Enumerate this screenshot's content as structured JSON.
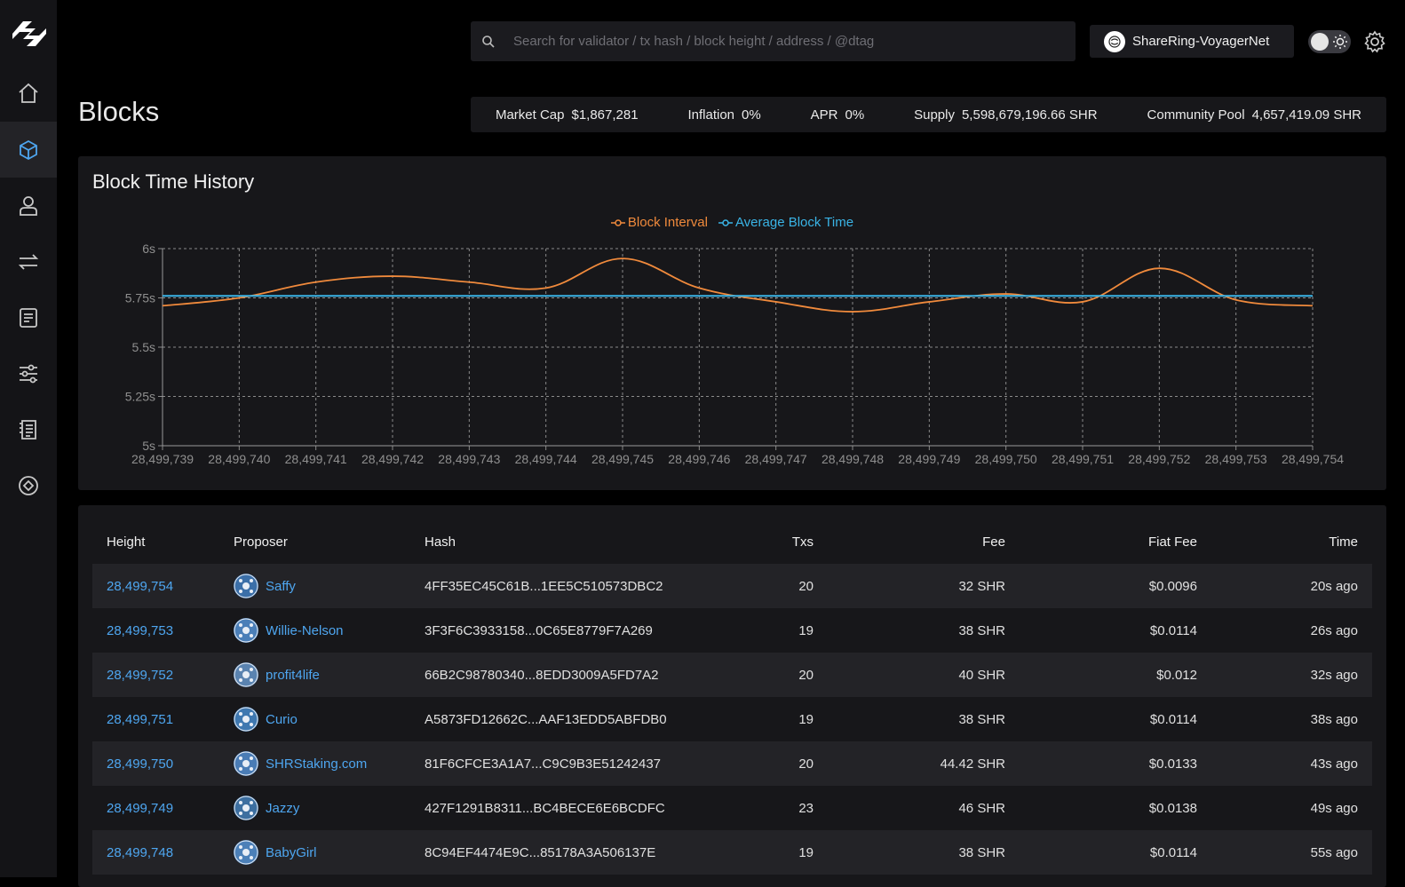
{
  "search": {
    "placeholder": "Search for validator / tx hash / block height / address / @dtag"
  },
  "network": {
    "name": "ShareRing-VoyagerNet"
  },
  "page": {
    "title": "Blocks"
  },
  "stats": [
    {
      "label": "Market Cap",
      "value": "$1,867,281"
    },
    {
      "label": "Inflation",
      "value": "0%"
    },
    {
      "label": "APR",
      "value": "0%"
    },
    {
      "label": "Supply",
      "value": "5,598,679,196.66 SHR"
    },
    {
      "label": "Community Pool",
      "value": "4,657,419.09 SHR"
    }
  ],
  "nav": [
    "home-icon",
    "blocks-icon",
    "validators-icon",
    "transactions-icon",
    "proposals-icon",
    "params-icon",
    "docs-icon",
    "other-icon"
  ],
  "colors": {
    "interval": "#f08a3c",
    "average": "#3ab4e6",
    "link": "#4ea6f0"
  },
  "chart_data": {
    "type": "line",
    "title": "Block Time History",
    "legend": [
      "Block Interval",
      "Average Block Time"
    ],
    "legend_position": "top-center",
    "categories": [
      "28,499,739",
      "28,499,740",
      "28,499,741",
      "28,499,742",
      "28,499,743",
      "28,499,744",
      "28,499,745",
      "28,499,746",
      "28,499,747",
      "28,499,748",
      "28,499,749",
      "28,499,750",
      "28,499,751",
      "28,499,752",
      "28,499,753",
      "28,499,754"
    ],
    "series": [
      {
        "name": "Block Interval",
        "values": [
          5.71,
          5.75,
          5.83,
          5.86,
          5.83,
          5.8,
          5.95,
          5.8,
          5.73,
          5.68,
          5.73,
          5.77,
          5.73,
          5.9,
          5.74,
          5.71
        ]
      },
      {
        "name": "Average Block Time",
        "values": [
          5.76,
          5.76,
          5.76,
          5.76,
          5.76,
          5.76,
          5.76,
          5.76,
          5.76,
          5.76,
          5.76,
          5.76,
          5.76,
          5.76,
          5.76,
          5.76
        ]
      }
    ],
    "yticks": [
      "5s",
      "5.25s",
      "5.5s",
      "5.75s",
      "6s"
    ],
    "ylim": [
      5,
      6
    ],
    "grid": true
  },
  "table": {
    "headers": {
      "height": "Height",
      "proposer": "Proposer",
      "hash": "Hash",
      "txs": "Txs",
      "fee": "Fee",
      "fiat": "Fiat Fee",
      "time": "Time"
    },
    "rows": [
      {
        "height": "28,499,754",
        "proposer": "Saffy",
        "hash": "4FF35EC45C61B...1EE5C510573DBC2",
        "txs": "20",
        "fee": "32 SHR",
        "fiat": "$0.0096",
        "time": "20s ago"
      },
      {
        "height": "28,499,753",
        "proposer": "Willie-Nelson",
        "hash": "3F3F6C3933158...0C65E8779F7A269",
        "txs": "19",
        "fee": "38 SHR",
        "fiat": "$0.0114",
        "time": "26s ago"
      },
      {
        "height": "28,499,752",
        "proposer": "profit4life",
        "hash": "66B2C98780340...8EDD3009A5FD7A2",
        "txs": "20",
        "fee": "40 SHR",
        "fiat": "$0.012",
        "time": "32s ago"
      },
      {
        "height": "28,499,751",
        "proposer": "Curio",
        "hash": "A5873FD12662C...AAF13EDD5ABFDB0",
        "txs": "19",
        "fee": "38 SHR",
        "fiat": "$0.0114",
        "time": "38s ago"
      },
      {
        "height": "28,499,750",
        "proposer": "SHRStaking.com",
        "hash": "81F6CFCE3A1A7...C9C9B3E51242437",
        "txs": "20",
        "fee": "44.42 SHR",
        "fiat": "$0.0133",
        "time": "43s ago"
      },
      {
        "height": "28,499,749",
        "proposer": "Jazzy",
        "hash": "427F1291B8311...BC4BECE6E6BCDFC",
        "txs": "23",
        "fee": "46 SHR",
        "fiat": "$0.0138",
        "time": "49s ago"
      },
      {
        "height": "28,499,748",
        "proposer": "BabyGirl",
        "hash": "8C94EF4474E9C...85178A3A506137E",
        "txs": "19",
        "fee": "38 SHR",
        "fiat": "$0.0114",
        "time": "55s ago"
      }
    ]
  }
}
